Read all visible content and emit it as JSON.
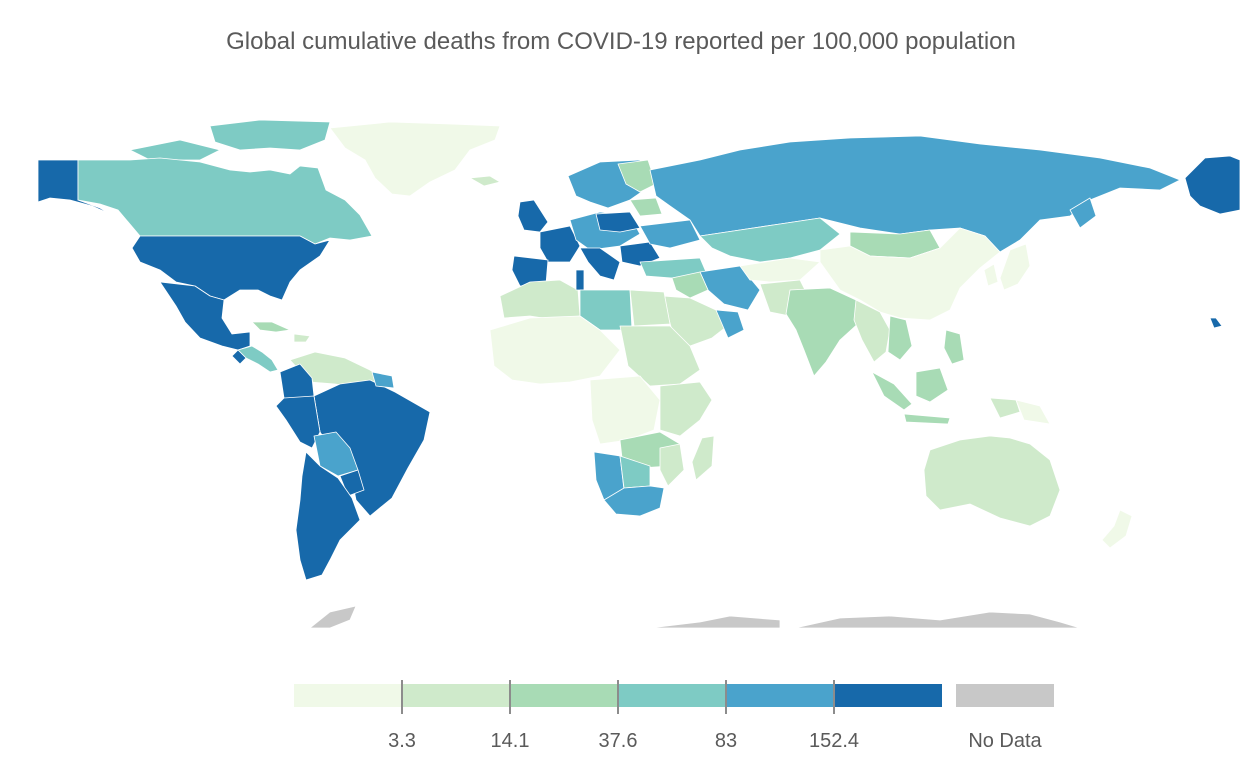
{
  "title": "Global cumulative deaths from COVID-19 reported per 100,000 population",
  "colors": {
    "bin1": "#f0f9e8",
    "bin2": "#cfeacb",
    "bin3": "#a8dbb5",
    "bin4": "#7ecbc4",
    "bin5": "#4aa3cc",
    "bin6": "#1769aa",
    "nodata": "#c8c8c8",
    "border": "#ffffff"
  },
  "legend": {
    "bins": [
      {
        "color": "#f0f9e8"
      },
      {
        "color": "#cfeacb"
      },
      {
        "color": "#a8dbb5"
      },
      {
        "color": "#7ecbc4"
      },
      {
        "color": "#4aa3cc"
      },
      {
        "color": "#1769aa"
      }
    ],
    "breaks": [
      "3.3",
      "14.1",
      "37.6",
      "83",
      "152.4"
    ],
    "nodata_label": "No Data"
  }
}
